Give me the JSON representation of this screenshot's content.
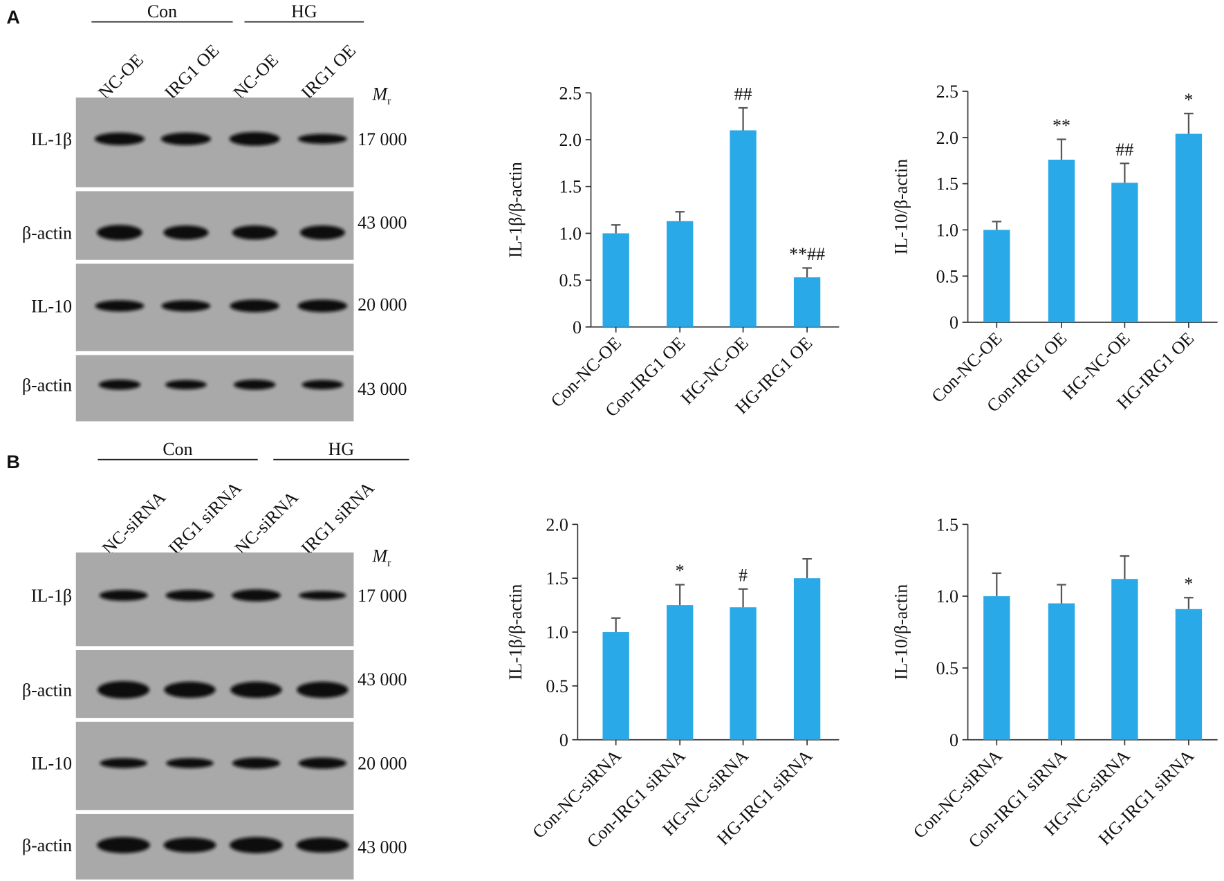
{
  "panels": [
    {
      "label": "A",
      "groups": [
        "Con",
        "HG"
      ],
      "lanes": [
        "NC-OE",
        "IRG1 OE",
        "NC-OE",
        "IRG1 OE"
      ],
      "mr_symbol": "M",
      "mr_subscript": "r",
      "rows": [
        {
          "name": "IL-1β",
          "mr": "17 000"
        },
        {
          "name": "β-actin",
          "mr": "43 000"
        },
        {
          "name": "IL-10",
          "mr": "20 000"
        },
        {
          "name": "β-actin",
          "mr": "43 000"
        }
      ]
    },
    {
      "label": "B",
      "groups": [
        "Con",
        "HG"
      ],
      "lanes": [
        "NC-siRNA",
        "IRG1 siRNA",
        "NC-siRNA",
        "IRG1 siRNA"
      ],
      "mr_symbol": "M",
      "mr_subscript": "r",
      "rows": [
        {
          "name": "IL-1β",
          "mr": "17 000"
        },
        {
          "name": "β-actin",
          "mr": "43 000"
        },
        {
          "name": "IL-10",
          "mr": "20 000"
        },
        {
          "name": "β-actin",
          "mr": "43 000"
        }
      ]
    }
  ],
  "chart_data": [
    {
      "type": "bar",
      "ylabel": "IL-1β/β-actin",
      "color": "#2aa9e8",
      "categories": [
        "Con-NC-OE",
        "Con-IRG1 OE",
        "HG-NC-OE",
        "HG-IRG1 OE"
      ],
      "values": [
        1.0,
        1.13,
        2.1,
        0.53
      ],
      "errors": [
        0.09,
        0.1,
        0.24,
        0.1
      ],
      "annotations": [
        null,
        null,
        "##",
        "**##"
      ],
      "ylim": [
        0,
        2.5
      ],
      "yticks": [
        0,
        0.5,
        {
          "value": 1,
          "label": "1.0"
        },
        1.5,
        {
          "value": 2,
          "label": "2.0"
        },
        2.5
      ]
    },
    {
      "type": "bar",
      "ylabel": "IL-10/β-actin",
      "color": "#2aa9e8",
      "categories": [
        "Con-NC-OE",
        "Con-IRG1 OE",
        "HG-NC-OE",
        "HG-IRG1 OE"
      ],
      "values": [
        1.0,
        1.76,
        1.51,
        2.04
      ],
      "errors": [
        0.09,
        0.22,
        0.21,
        0.22
      ],
      "annotations": [
        null,
        "**",
        "##",
        "*"
      ],
      "ylim": [
        0,
        2.5
      ],
      "yticks": [
        0,
        0.5,
        {
          "value": 1,
          "label": "1.0"
        },
        1.5,
        {
          "value": 2,
          "label": "2.0"
        },
        2.5
      ]
    },
    {
      "type": "bar",
      "ylabel": "IL-1β/β-actin",
      "color": "#2aa9e8",
      "categories": [
        "Con-NC-siRNA",
        "Con-IRG1 siRNA",
        "HG-NC-siRNA",
        "HG-IRG1 siRNA"
      ],
      "values": [
        1.0,
        1.25,
        1.23,
        1.5
      ],
      "errors": [
        0.13,
        0.19,
        0.17,
        0.18
      ],
      "annotations": [
        null,
        "*",
        "#",
        null
      ],
      "ylim": [
        0,
        2
      ],
      "yticks": [
        0,
        0.5,
        {
          "value": 1,
          "label": "1.0"
        },
        1.5,
        {
          "value": 2,
          "label": "2.0"
        }
      ]
    },
    {
      "type": "bar",
      "ylabel": "IL-10/β-actin",
      "color": "#2aa9e8",
      "categories": [
        "Con-NC-siRNA",
        "Con-IRG1 siRNA",
        "HG-NC-siRNA",
        "HG-IRG1 siRNA"
      ],
      "values": [
        1.0,
        0.95,
        1.12,
        0.91
      ],
      "errors": [
        0.16,
        0.13,
        0.16,
        0.08
      ],
      "annotations": [
        null,
        null,
        null,
        "*"
      ],
      "ylim": [
        0,
        1.5
      ],
      "yticks": [
        0,
        0.5,
        {
          "value": 1,
          "label": "1.0"
        },
        1.5
      ]
    }
  ]
}
